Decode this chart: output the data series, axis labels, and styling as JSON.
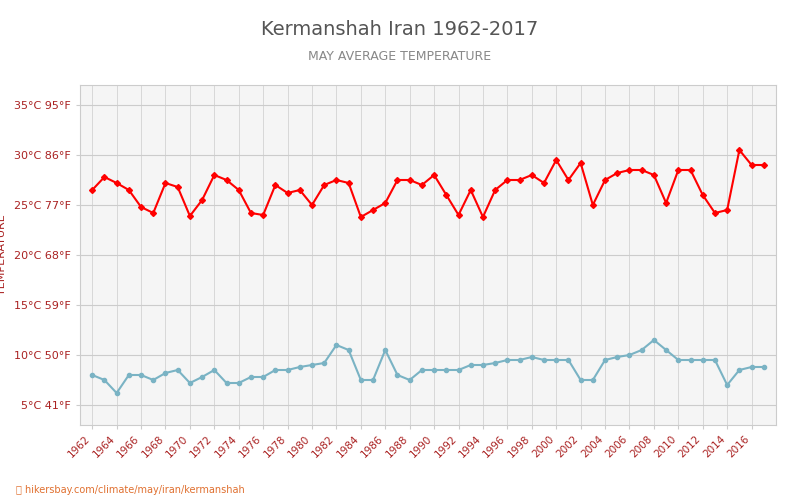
{
  "title": "Kermanshah Iran 1962-2017",
  "subtitle": "MAY AVERAGE TEMPERATURE",
  "ylabel": "TEMPERATURE",
  "xlabel_url": "hikersbay.com/climate/may/iran/kermanshah",
  "background_color": "#ffffff",
  "plot_bg_color": "#f5f5f5",
  "title_color": "#555555",
  "subtitle_color": "#888888",
  "axis_label_color": "#aa2222",
  "tick_label_color": "#aa2222",
  "grid_color": "#cccccc",
  "years": [
    1962,
    1963,
    1964,
    1965,
    1966,
    1967,
    1968,
    1969,
    1970,
    1971,
    1972,
    1973,
    1974,
    1975,
    1976,
    1977,
    1978,
    1979,
    1980,
    1981,
    1982,
    1983,
    1984,
    1985,
    1986,
    1987,
    1988,
    1989,
    1990,
    1991,
    1992,
    1993,
    1994,
    1995,
    1996,
    1997,
    1998,
    1999,
    2000,
    2001,
    2002,
    2003,
    2004,
    2005,
    2006,
    2007,
    2008,
    2009,
    2010,
    2011,
    2012,
    2013,
    2014,
    2015,
    2016,
    2017
  ],
  "day_temps": [
    26.5,
    27.8,
    27.2,
    26.5,
    24.8,
    24.2,
    27.2,
    26.8,
    23.9,
    25.5,
    28.0,
    27.5,
    26.5,
    24.2,
    24.0,
    27.0,
    26.2,
    26.5,
    25.0,
    27.0,
    27.5,
    27.2,
    23.8,
    24.5,
    25.2,
    27.5,
    27.5,
    27.0,
    28.0,
    26.0,
    24.0,
    26.5,
    23.8,
    26.5,
    27.5,
    27.5,
    28.0,
    27.2,
    29.5,
    27.5,
    29.2,
    25.0,
    27.5,
    28.2,
    28.5,
    28.5,
    28.0,
    25.2,
    28.5,
    28.5,
    26.0,
    24.2,
    24.5,
    30.5,
    29.0,
    29.0
  ],
  "night_temps": [
    8.0,
    7.5,
    6.2,
    8.0,
    8.0,
    7.5,
    8.2,
    8.5,
    7.2,
    7.8,
    8.5,
    7.2,
    7.2,
    7.8,
    7.8,
    8.5,
    8.5,
    8.8,
    9.0,
    9.2,
    11.0,
    10.5,
    7.5,
    7.5,
    10.5,
    8.0,
    7.5,
    8.5,
    8.5,
    8.5,
    8.5,
    9.0,
    9.0,
    9.2,
    9.5,
    9.5,
    9.8,
    9.5,
    9.5,
    9.5,
    7.5,
    7.5,
    9.5,
    9.8,
    10.0,
    10.5,
    11.5,
    10.5,
    9.5,
    9.5,
    9.5,
    9.5,
    7.0,
    8.5,
    8.8,
    8.8
  ],
  "day_color": "#ff0000",
  "night_color": "#7ab3c4",
  "day_marker": "D",
  "night_marker": "o",
  "marker_size": 3,
  "line_width": 1.5,
  "yticks_celsius": [
    5,
    10,
    15,
    20,
    25,
    30,
    35
  ],
  "yticks_labels": [
    "5°C 41°F",
    "10°C 50°F",
    "15°C 59°F",
    "20°C 68°F",
    "25°C 77°F",
    "30°C 86°F",
    "35°C 95°F"
  ],
  "ylim": [
    3,
    37
  ],
  "xlim": [
    1961,
    2018
  ]
}
